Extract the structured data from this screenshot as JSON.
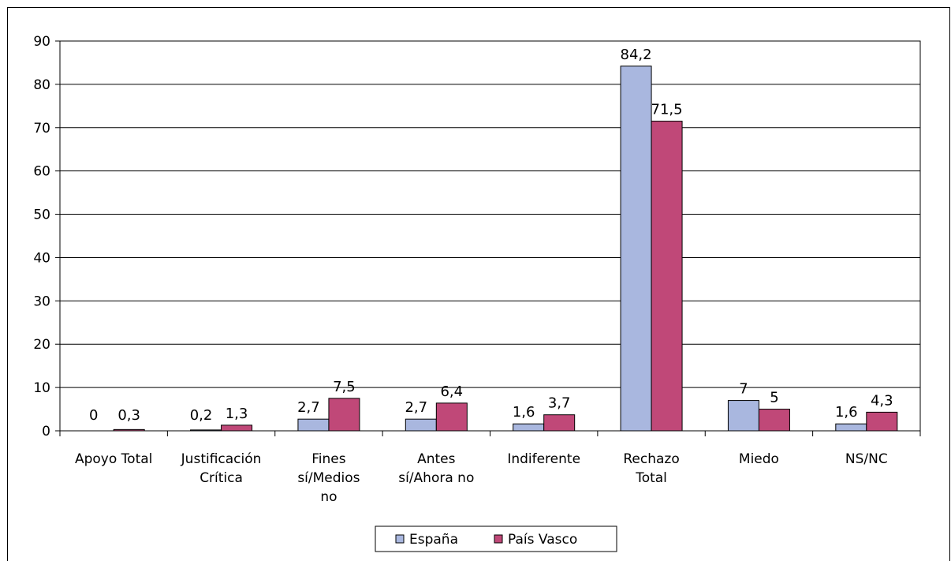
{
  "chart_data": {
    "type": "bar",
    "categories": [
      [
        "Apoyo Total"
      ],
      [
        "Justificación",
        "Crítica"
      ],
      [
        "Fines",
        "sí/Medios",
        "no"
      ],
      [
        "Antes",
        "sí/Ahora no"
      ],
      [
        "Indiferente"
      ],
      [
        "Rechazo",
        "Total"
      ],
      [
        "Miedo"
      ],
      [
        "NS/NC"
      ]
    ],
    "series": [
      {
        "name": "España",
        "color": "#a9b7df",
        "values": [
          0,
          0.2,
          2.7,
          2.7,
          1.6,
          84.2,
          7,
          1.6
        ],
        "labels": [
          "0",
          "0,2",
          "2,7",
          "2,7",
          "1,6",
          "84,2",
          "7",
          "1,6"
        ]
      },
      {
        "name": "País Vasco",
        "color": "#c04878",
        "values": [
          0.3,
          1.3,
          7.5,
          6.4,
          3.7,
          71.5,
          5,
          4.3
        ],
        "labels": [
          "0,3",
          "1,3",
          "7,5",
          "6,4",
          "3,7",
          "71,5",
          "5",
          "4,3"
        ]
      }
    ],
    "yticks": [
      "0",
      "10",
      "20",
      "30",
      "40",
      "50",
      "60",
      "70",
      "80",
      "90"
    ],
    "ylim": [
      0,
      90
    ],
    "grid": true,
    "legend": "bottom"
  }
}
